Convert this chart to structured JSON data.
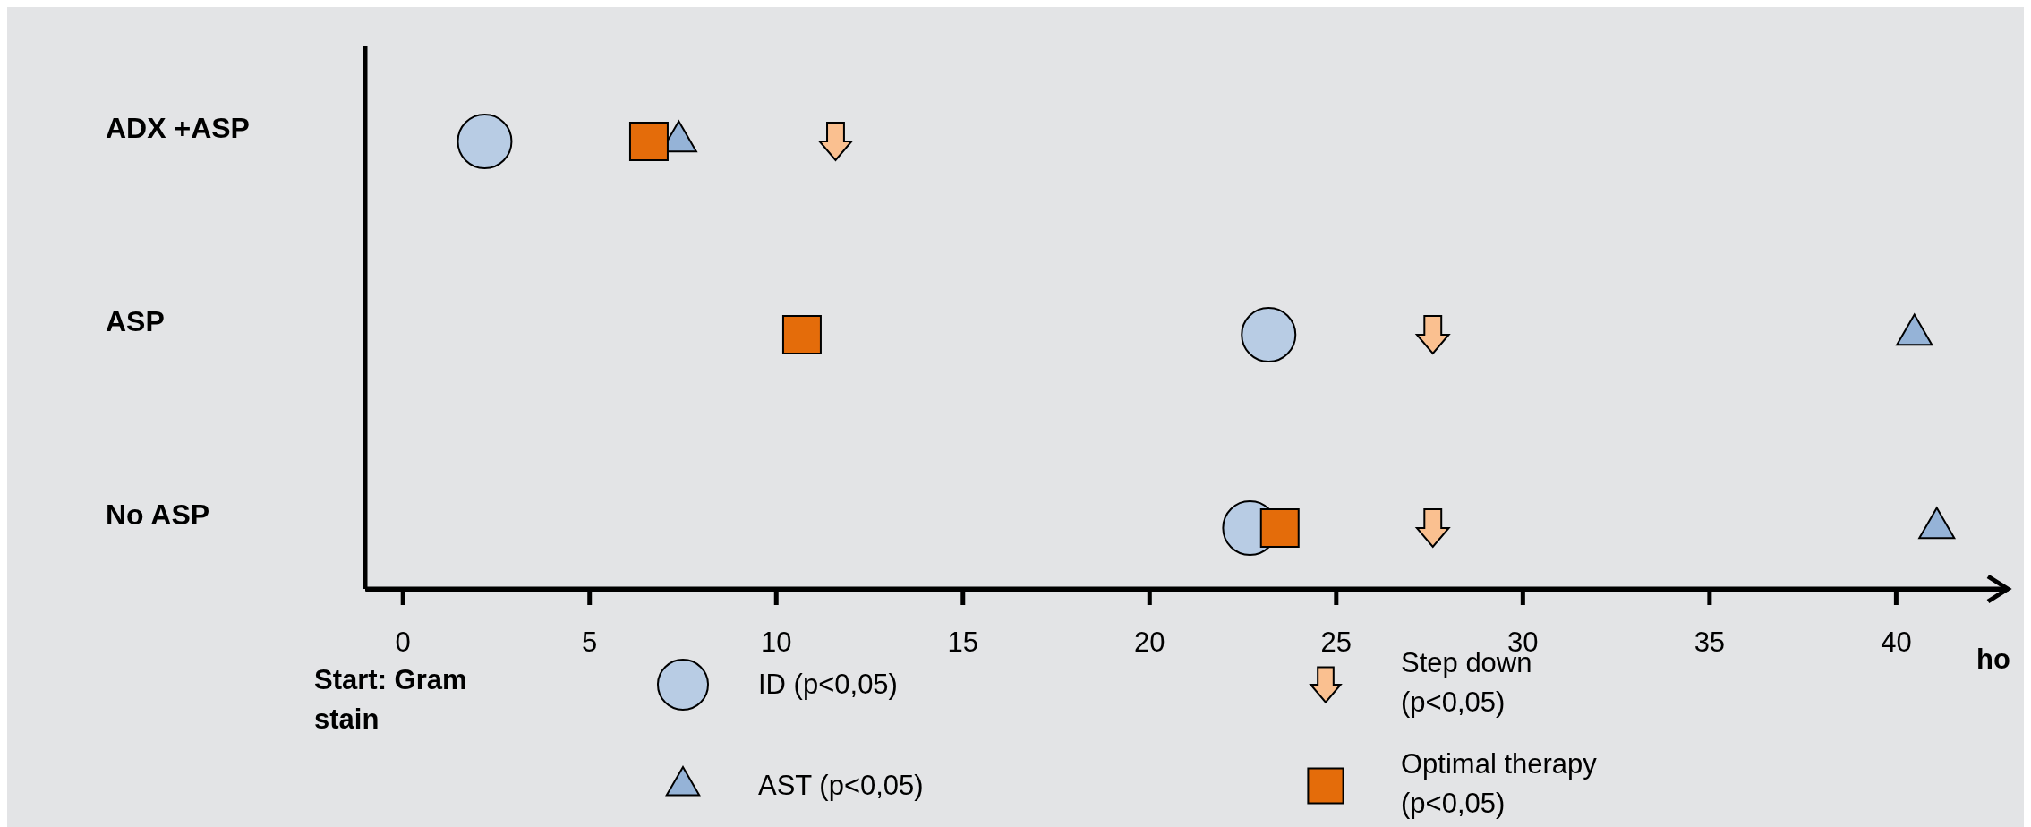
{
  "chart_data": {
    "type": "scatter",
    "orientation": "horizontal",
    "categories": [
      "ADX +ASP",
      "ASP",
      "No ASP"
    ],
    "xlabel": "ho",
    "xlim": [
      -1,
      43
    ],
    "xticks": [
      0,
      5,
      10,
      15,
      20,
      25,
      30,
      35,
      40
    ],
    "legend": "bottom",
    "annotations": [
      "Start: Gram stain"
    ],
    "series": [
      {
        "name": "ID (p<0,05)",
        "color": "#b8cce4",
        "marker": "circle",
        "values": [
          2.2,
          23.2,
          22.7
        ]
      },
      {
        "name": "AST (p<0,05)",
        "color": "#95b3d7",
        "marker": "triangle",
        "values": [
          7.4,
          40.5,
          41.1
        ]
      },
      {
        "name": "Step down (p<0,05)",
        "color": "#fac090",
        "values": [
          11.6,
          27.6,
          27.6
        ]
      },
      {
        "name": "Optimal therapy (p<0,05)",
        "color": "#e46c0a",
        "marker": "square",
        "values": [
          6.6,
          10.7,
          23.5
        ]
      }
    ]
  }
}
